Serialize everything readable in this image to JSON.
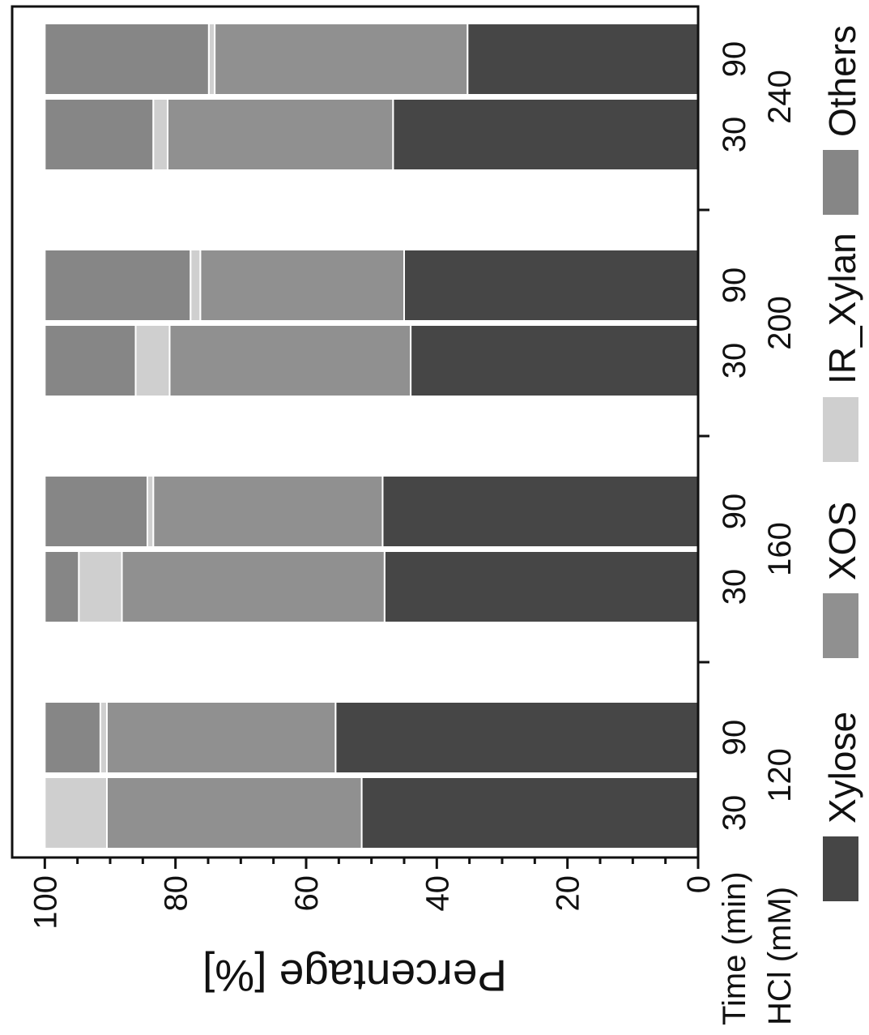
{
  "chart_data": {
    "type": "bar",
    "stacked": true,
    "categories": [
      "30",
      "90",
      "30",
      "90",
      "30",
      "90",
      "30",
      "90"
    ],
    "groups": [
      "120",
      "160",
      "200",
      "240"
    ],
    "xlabel_rows": [
      "Time (min)",
      "HCl (mM)"
    ],
    "ylabel": "Percentage [%]",
    "ylim": [
      0,
      105
    ],
    "yticks": [
      0,
      20,
      40,
      60,
      80,
      100
    ],
    "grid": false,
    "legend_position": "bottom",
    "series": [
      {
        "name": "Xylose",
        "color": "#464646",
        "values": [
          51.5,
          55.5,
          48.0,
          48.3,
          44.0,
          45.0,
          46.7,
          35.3
        ]
      },
      {
        "name": "XOS",
        "color": "#909090",
        "values": [
          39.0,
          35.0,
          40.2,
          35.1,
          36.9,
          31.2,
          34.5,
          38.7
        ]
      },
      {
        "name": "IR_Xylan",
        "color": "#cfcfcf",
        "values": [
          9.5,
          1.0,
          6.6,
          0.9,
          5.2,
          1.5,
          2.2,
          0.9
        ]
      },
      {
        "name": "Others",
        "color": "#868686",
        "values": [
          0.0,
          8.5,
          5.2,
          15.7,
          13.9,
          22.3,
          16.6,
          25.1
        ]
      }
    ]
  }
}
